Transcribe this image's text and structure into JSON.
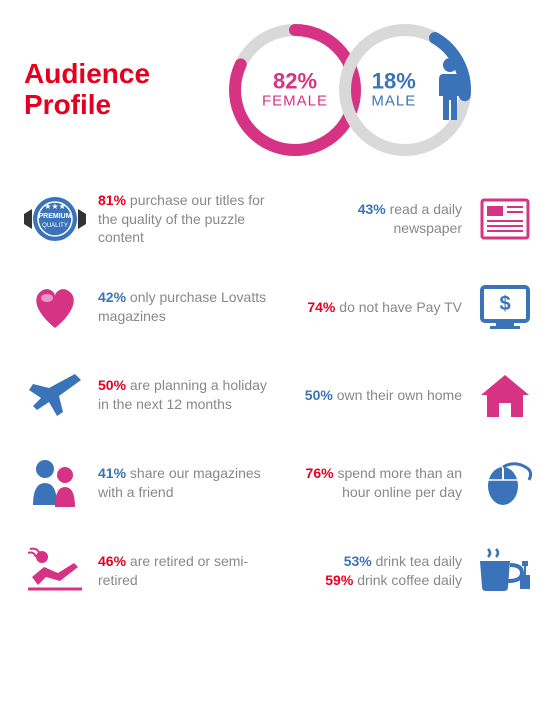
{
  "title": "Audience Profile",
  "colors": {
    "red": "#e6001f",
    "pink": "#d63384",
    "blue": "#3b73b8",
    "grey": "#888888",
    "ring_grey": "#d9d9d9",
    "bg": "#ffffff"
  },
  "gender": {
    "female": {
      "pct": "82%",
      "label": "FEMALE",
      "ring_color": "#d63384",
      "value": 82
    },
    "male": {
      "pct": "18%",
      "label": "MALE",
      "ring_color": "#3b73b8",
      "value": 18
    }
  },
  "stats": [
    {
      "side": "left",
      "pct": "81%",
      "pct_color": "red",
      "text": "purchase our titles for the quality of the puzzle content",
      "icon": "badge",
      "icon_color": "#3b73b8"
    },
    {
      "side": "right",
      "pct": "43%",
      "pct_color": "blue",
      "text": "read a daily newspaper",
      "icon": "newspaper",
      "icon_color": "#d63384"
    },
    {
      "side": "left",
      "pct": "42%",
      "pct_color": "blue",
      "text": "only purchase Lovatts magazines",
      "icon": "heart",
      "icon_color": "#d63384"
    },
    {
      "side": "right",
      "pct": "74%",
      "pct_color": "red",
      "text": "do not have Pay TV",
      "icon": "tv",
      "icon_color": "#3b73b8"
    },
    {
      "side": "left",
      "pct": "50%",
      "pct_color": "red",
      "text": "are planning a holiday in the next 12 months",
      "icon": "plane",
      "icon_color": "#3b73b8"
    },
    {
      "side": "right",
      "pct": "50%",
      "pct_color": "blue",
      "text": "own their own home",
      "icon": "house",
      "icon_color": "#d63384"
    },
    {
      "side": "left",
      "pct": "41%",
      "pct_color": "blue",
      "text": "share our magazines with a friend",
      "icon": "people",
      "icon_color": "both"
    },
    {
      "side": "right",
      "pct": "76%",
      "pct_color": "red",
      "text": "spend more than an hour online per day",
      "icon": "mouse",
      "icon_color": "#3b73b8"
    },
    {
      "side": "left",
      "pct": "46%",
      "pct_color": "red",
      "text": "are retired or semi-retired",
      "icon": "recline",
      "icon_color": "#d63384"
    },
    {
      "side": "right",
      "pct2_before": "53%",
      "pct2_before_color": "blue",
      "text2_before": "drink tea daily",
      "pct": "59%",
      "pct_color": "red",
      "text": "drink coffee daily",
      "icon": "cup",
      "icon_color": "#3b73b8"
    }
  ]
}
